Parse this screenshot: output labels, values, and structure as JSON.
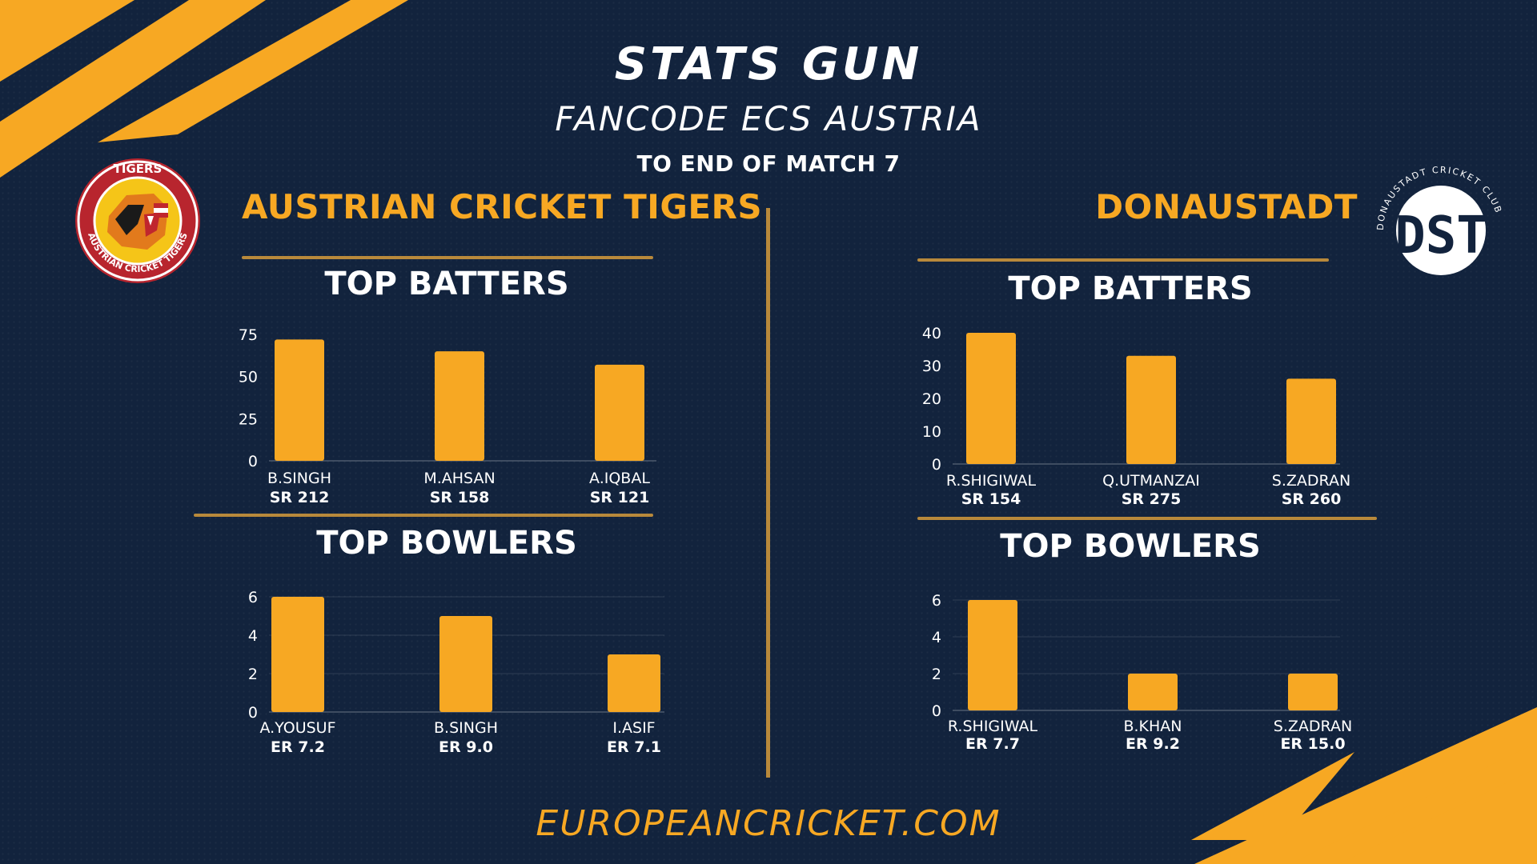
{
  "header": {
    "title": "STATS GUN",
    "subtitle": "FANCODE ECS AUSTRIA",
    "note": "TO END OF MATCH 7"
  },
  "teams": {
    "left": {
      "name": "AUSTRIAN CRICKET TIGERS",
      "logo_top_text": "TIGERS",
      "logo_ring_text": "AUSTRIAN CRICKET TIGERS"
    },
    "right": {
      "name": "DONAUSTADT",
      "logo_text": "DST",
      "logo_ring_text": "DONAUSTADT CRICKET CLUB"
    }
  },
  "footer": {
    "website": "EUROPEANCRICKET.COM"
  },
  "colors": {
    "background": "#12233d",
    "accent": "#f7a823",
    "bar": "#f7a823",
    "line": "#b8893b"
  },
  "chart_data": [
    {
      "id": "tigers-batters",
      "type": "bar",
      "title": "TOP BATTERS",
      "categories": [
        "B.SINGH",
        "M.AHSAN",
        "A.IQBAL"
      ],
      "sublabels": [
        "SR 212",
        "SR 158",
        "SR 121"
      ],
      "values": [
        72,
        65,
        57
      ],
      "ylim": [
        0,
        75
      ],
      "yticks": [
        0,
        25,
        50,
        75
      ],
      "grid": false
    },
    {
      "id": "tigers-bowlers",
      "type": "bar",
      "title": "TOP BOWLERS",
      "categories": [
        "A.YOUSUF",
        "B.SINGH",
        "I.ASIF"
      ],
      "sublabels": [
        "ER 7.2",
        "ER 9.0",
        "ER 7.1"
      ],
      "values": [
        6,
        5,
        3
      ],
      "ylim": [
        0,
        6
      ],
      "yticks": [
        0,
        2,
        4,
        6
      ],
      "grid": true
    },
    {
      "id": "donaustadt-batters",
      "type": "bar",
      "title": "TOP BATTERS",
      "categories": [
        "R.SHIGIWAL",
        "Q.UTMANZAI",
        "S.ZADRAN"
      ],
      "sublabels": [
        "SR 154",
        "SR 275",
        "SR 260"
      ],
      "values": [
        40,
        33,
        26
      ],
      "ylim": [
        0,
        40
      ],
      "yticks": [
        0,
        10,
        20,
        30,
        40
      ],
      "grid": false
    },
    {
      "id": "donaustadt-bowlers",
      "type": "bar",
      "title": "TOP BOWLERS",
      "categories": [
        "R.SHIGIWAL",
        "B.KHAN",
        "S.ZADRAN"
      ],
      "sublabels": [
        "ER 7.7",
        "ER 9.2",
        "ER 15.0"
      ],
      "values": [
        6,
        2,
        2
      ],
      "ylim": [
        0,
        6
      ],
      "yticks": [
        0,
        2,
        4,
        6
      ],
      "grid": true
    }
  ]
}
